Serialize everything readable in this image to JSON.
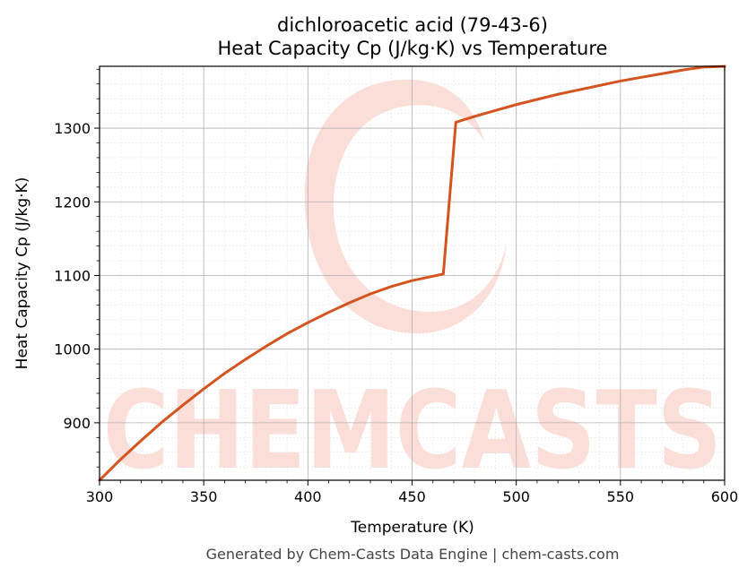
{
  "chart_data": {
    "type": "line",
    "title": "dichloroacetic acid (79-43-6)",
    "subtitle": "Heat Capacity Cp (J/kg·K) vs Temperature",
    "xlabel": "Temperature (K)",
    "ylabel": "Heat Capacity Cp (J/kg·K)",
    "xlim": [
      300,
      600
    ],
    "ylim": [
      822,
      1384
    ],
    "xticks": [
      300,
      350,
      400,
      450,
      500,
      550,
      600
    ],
    "yticks": [
      900,
      1000,
      1100,
      1200,
      1300
    ],
    "grid": true,
    "series": [
      {
        "color": "#d4541f",
        "x": [
          300,
          310,
          320,
          330,
          340,
          350,
          360,
          370,
          380,
          390,
          400,
          410,
          420,
          430,
          440,
          450,
          460,
          465,
          471,
          480,
          490,
          500,
          510,
          520,
          530,
          540,
          550,
          560,
          570,
          580,
          590,
          600
        ],
        "y": [
          822,
          850,
          876,
          901,
          924,
          946,
          967,
          986,
          1004,
          1021,
          1036,
          1050,
          1063,
          1075,
          1085,
          1093,
          1099,
          1102,
          1308,
          1316,
          1324,
          1332,
          1339,
          1346,
          1352,
          1358,
          1364,
          1369,
          1374,
          1379,
          1383,
          1384
        ]
      }
    ]
  },
  "footer": "Generated by Chem-Casts Data Engine | chem-casts.com",
  "watermark": {
    "text": "CHEMCASTS",
    "color": "#fbd3cc"
  }
}
